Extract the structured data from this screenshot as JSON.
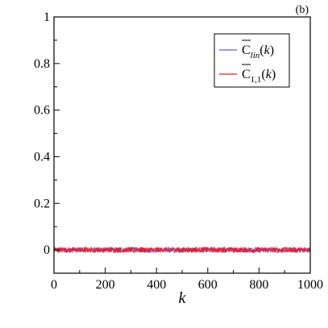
{
  "chart_data": {
    "type": "line",
    "panel_label": "(b)",
    "xlabel": "k",
    "ylabel": "",
    "xlim": [
      0,
      1000
    ],
    "ylim": [
      -0.1,
      1.0
    ],
    "x_ticks": [
      0,
      200,
      400,
      600,
      800,
      1000
    ],
    "y_ticks": [
      0,
      0.2,
      0.4,
      0.6,
      0.8,
      1
    ],
    "x_tick_labels": [
      "0",
      "200",
      "400",
      "600",
      "800",
      "1000"
    ],
    "y_tick_labels": [
      "0",
      "0.2",
      "0.4",
      "0.6",
      "0.8",
      "1"
    ],
    "grid": false,
    "legend_position": "top-right",
    "series": [
      {
        "name": "C̄lin(k)",
        "color": "#5b5bd6",
        "mean": 0.0,
        "noise_amplitude": 0.012,
        "x_range": [
          0,
          1000
        ]
      },
      {
        "name": "C̄1,1(k)",
        "color": "#e8202a",
        "mean": 0.0,
        "noise_amplitude": 0.012,
        "x_range": [
          0,
          1000
        ]
      }
    ]
  }
}
